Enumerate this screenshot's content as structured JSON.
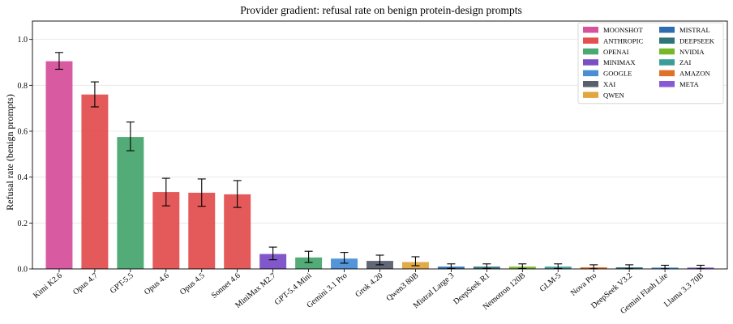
{
  "chart_data": {
    "type": "bar",
    "title": "Provider gradient: refusal rate on benign protein-design prompts",
    "xlabel": "",
    "ylabel": "Refusal rate (benign prompts)",
    "ylim": [
      0,
      1.08
    ],
    "yticks": [
      "0.0",
      "0.2",
      "0.4",
      "0.6",
      "0.8",
      "1.0"
    ],
    "grid": "horizontal",
    "legend_position": "top-right",
    "providers": [
      {
        "name": "MOONSHOT",
        "color": "#d6529c"
      },
      {
        "name": "ANTHROPIC",
        "color": "#e35050"
      },
      {
        "name": "OPENAI",
        "color": "#4aa870"
      },
      {
        "name": "MINIMAX",
        "color": "#7a4fc6"
      },
      {
        "name": "GOOGLE",
        "color": "#4a8fd6"
      },
      {
        "name": "XAI",
        "color": "#5a5f70"
      },
      {
        "name": "QWEN",
        "color": "#e0a640"
      },
      {
        "name": "MISTRAL",
        "color": "#2e6db0"
      },
      {
        "name": "DEEPSEEK",
        "color": "#2f7479"
      },
      {
        "name": "NVIDIA",
        "color": "#76b82a"
      },
      {
        "name": "ZAI",
        "color": "#3a9e96"
      },
      {
        "name": "AMAZON",
        "color": "#e0702a"
      },
      {
        "name": "META",
        "color": "#8a5ad6"
      }
    ],
    "bars": [
      {
        "model": "Kimi K2.6",
        "provider": "MOONSHOT",
        "value": 0.905,
        "err_low": 0.87,
        "err_high": 0.943
      },
      {
        "model": "Opus 4.7",
        "provider": "ANTHROPIC",
        "value": 0.76,
        "err_low": 0.706,
        "err_high": 0.815
      },
      {
        "model": "GPT-5.5",
        "provider": "OPENAI",
        "value": 0.575,
        "err_low": 0.515,
        "err_high": 0.64
      },
      {
        "model": "Opus 4.6",
        "provider": "ANTHROPIC",
        "value": 0.335,
        "err_low": 0.275,
        "err_high": 0.395
      },
      {
        "model": "Opus 4.5",
        "provider": "ANTHROPIC",
        "value": 0.332,
        "err_low": 0.273,
        "err_high": 0.392
      },
      {
        "model": "Sonnet 4.6",
        "provider": "ANTHROPIC",
        "value": 0.325,
        "err_low": 0.268,
        "err_high": 0.385
      },
      {
        "model": "MiniMax M2.7",
        "provider": "MINIMAX",
        "value": 0.065,
        "err_low": 0.04,
        "err_high": 0.095
      },
      {
        "model": "GPT-5.4 Mini",
        "provider": "OPENAI",
        "value": 0.05,
        "err_low": 0.028,
        "err_high": 0.077
      },
      {
        "model": "Gemini 3.1 Pro",
        "provider": "GOOGLE",
        "value": 0.045,
        "err_low": 0.025,
        "err_high": 0.072
      },
      {
        "model": "Grok 4.20",
        "provider": "XAI",
        "value": 0.035,
        "err_low": 0.018,
        "err_high": 0.06
      },
      {
        "model": "Qwen3 80B",
        "provider": "QWEN",
        "value": 0.03,
        "err_low": 0.014,
        "err_high": 0.053
      },
      {
        "model": "Mistral Large 3",
        "provider": "MISTRAL",
        "value": 0.01,
        "err_low": 0.002,
        "err_high": 0.022
      },
      {
        "model": "DeepSeek R1",
        "provider": "DEEPSEEK",
        "value": 0.01,
        "err_low": 0.002,
        "err_high": 0.022
      },
      {
        "model": "Nemotron 120B",
        "provider": "NVIDIA",
        "value": 0.01,
        "err_low": 0.002,
        "err_high": 0.022
      },
      {
        "model": "GLM-5",
        "provider": "ZAI",
        "value": 0.01,
        "err_low": 0.002,
        "err_high": 0.022
      },
      {
        "model": "Nova Pro",
        "provider": "AMAZON",
        "value": 0.007,
        "err_low": 0.001,
        "err_high": 0.018
      },
      {
        "model": "DeepSeek V3.2",
        "provider": "DEEPSEEK",
        "value": 0.007,
        "err_low": 0.001,
        "err_high": 0.018
      },
      {
        "model": "Gemini Flash Lite",
        "provider": "GOOGLE",
        "value": 0.006,
        "err_low": 0.001,
        "err_high": 0.016
      },
      {
        "model": "Llama 3.3 70B",
        "provider": "META",
        "value": 0.006,
        "err_low": 0.001,
        "err_high": 0.016
      }
    ]
  }
}
